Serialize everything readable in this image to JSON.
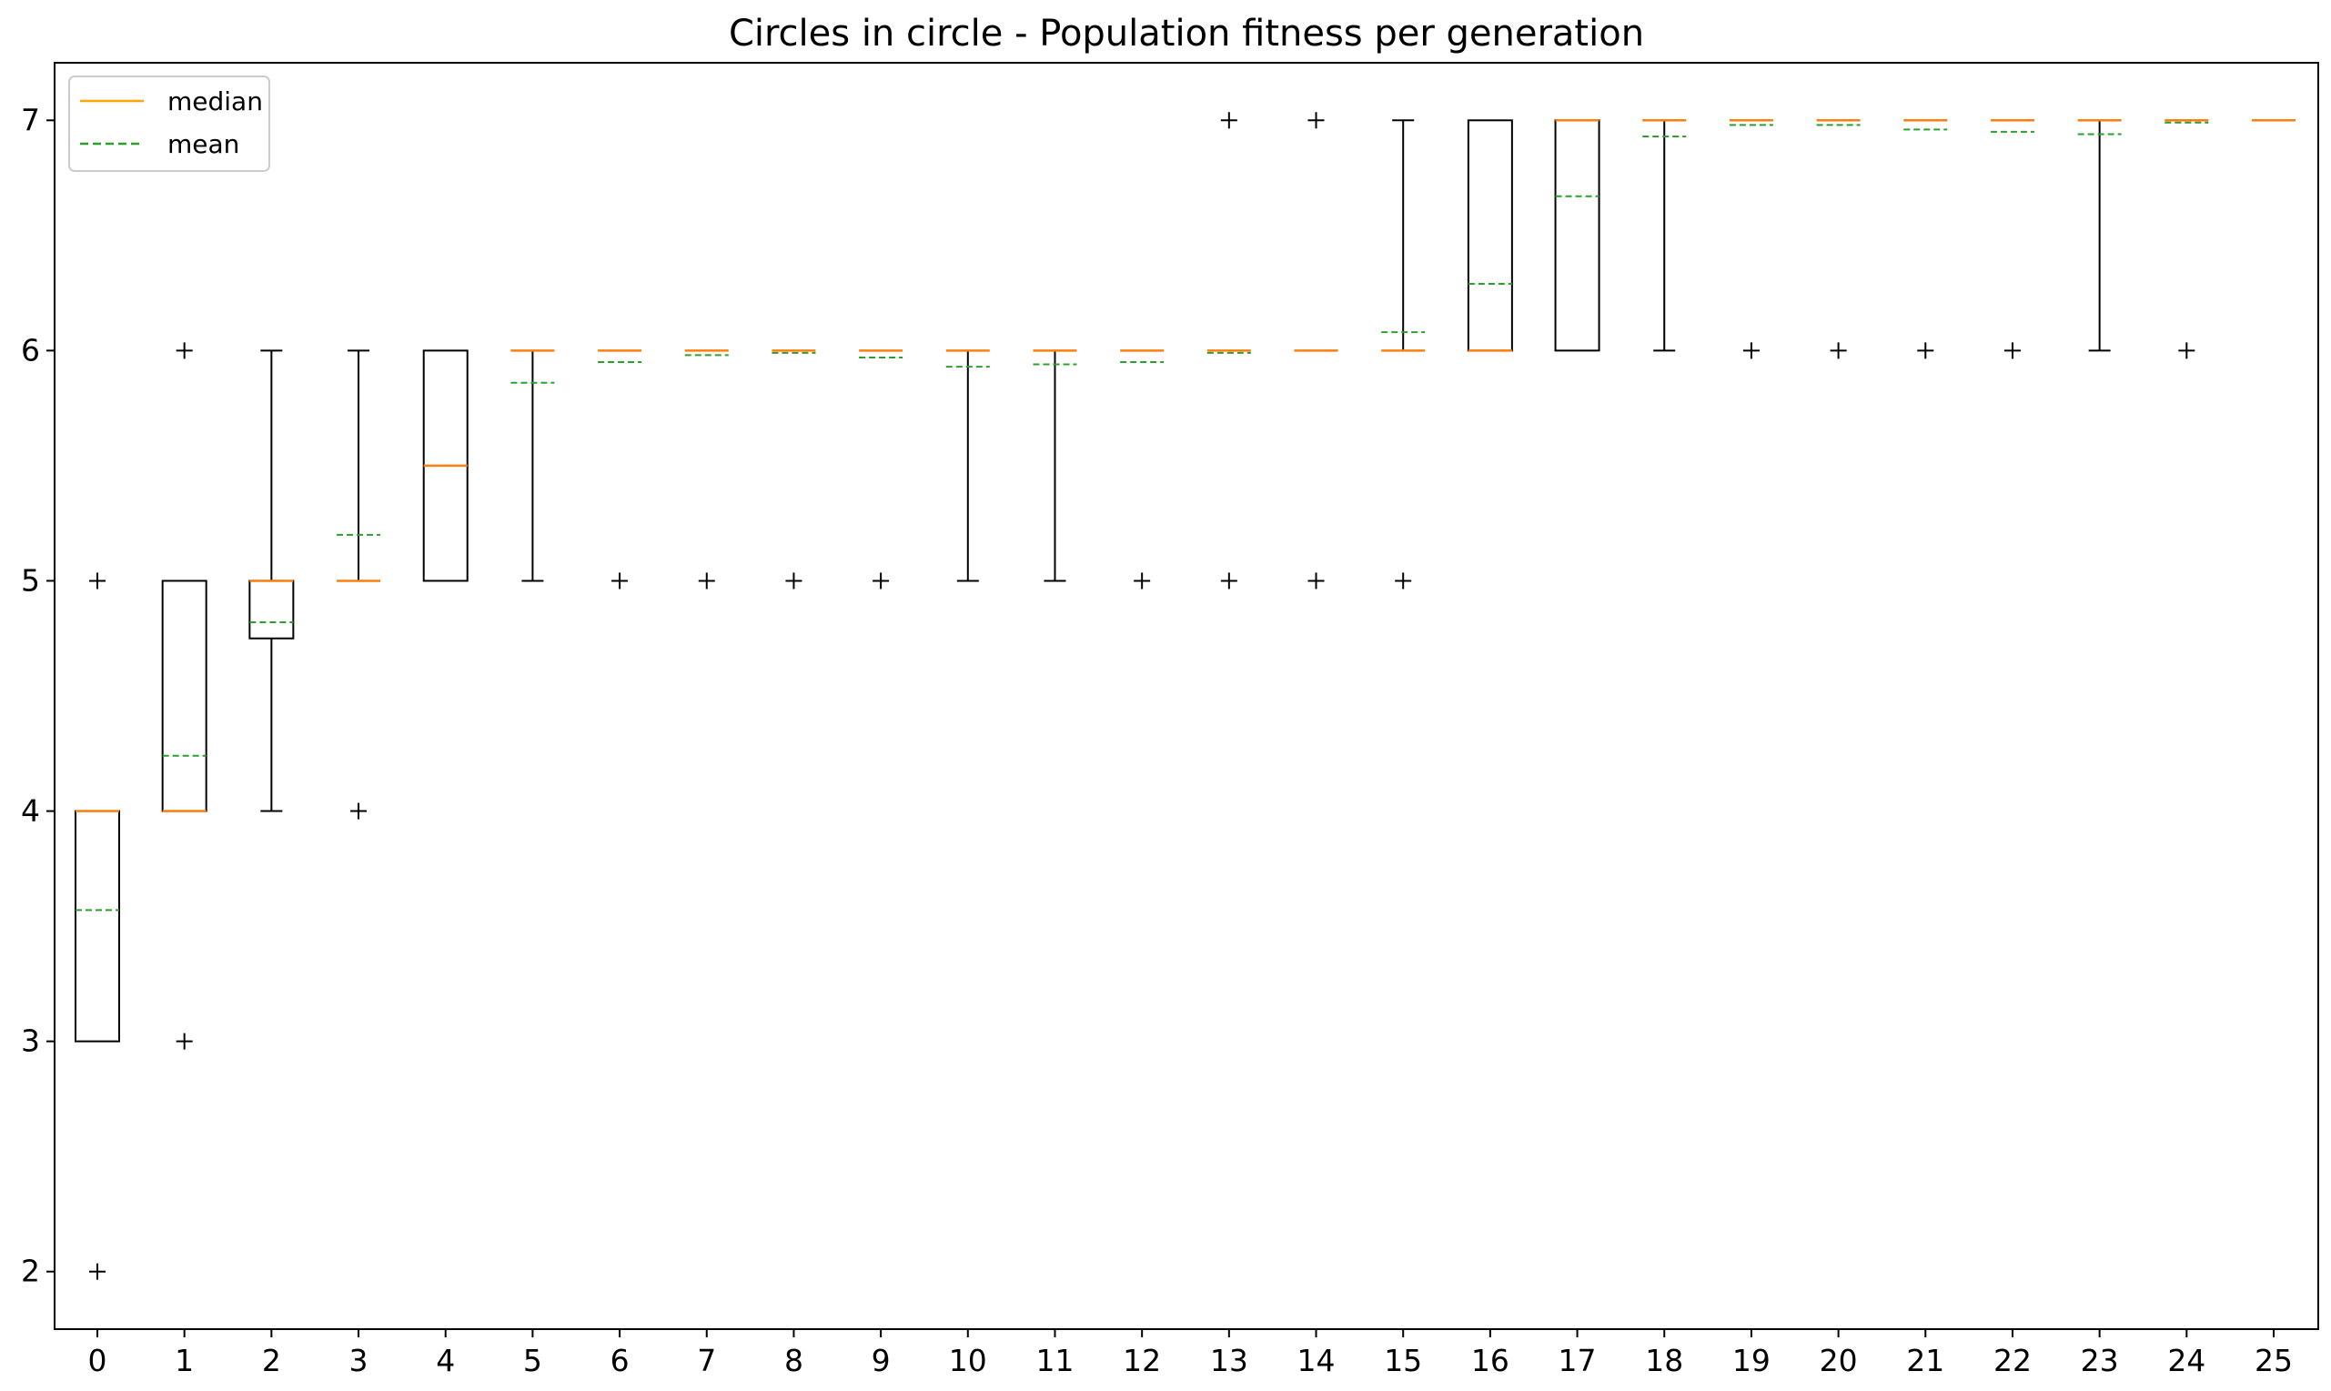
{
  "chart_data": {
    "type": "boxplot",
    "title": "Circles in circle - Population fitness per generation",
    "xlabel": "",
    "ylabel": "",
    "ylim": [
      1.75,
      7.25
    ],
    "yticks": [
      2,
      3,
      4,
      5,
      6,
      7
    ],
    "xticks": [
      0,
      1,
      2,
      3,
      4,
      5,
      6,
      7,
      8,
      9,
      10,
      11,
      12,
      13,
      14,
      15,
      16,
      17,
      18,
      19,
      20,
      21,
      22,
      23,
      24,
      25
    ],
    "legend": {
      "placement": "top-left",
      "entries": [
        {
          "key": "median",
          "label": "median",
          "color": "#ffa500",
          "style": "solid"
        },
        {
          "key": "mean",
          "label": "mean",
          "color": "#2ca02c",
          "style": "dashed"
        }
      ]
    },
    "colors": {
      "box": "#000000",
      "median": "#ff7f0e",
      "mean": "#2ca02c",
      "flier": "#000000"
    },
    "generations": [
      {
        "gen": 0,
        "q1": 3,
        "q3": 4,
        "median": 4,
        "mean": 3.57,
        "whisker_low": 3,
        "whisker_high": 4,
        "fliers": [
          2,
          5
        ]
      },
      {
        "gen": 1,
        "q1": 4,
        "q3": 5,
        "median": 4,
        "mean": 4.24,
        "whisker_low": 4,
        "whisker_high": 5,
        "fliers": [
          3,
          6
        ]
      },
      {
        "gen": 2,
        "q1": 4.75,
        "q3": 5,
        "median": 5,
        "mean": 4.82,
        "whisker_low": 4,
        "whisker_high": 6,
        "fliers": []
      },
      {
        "gen": 3,
        "q1": 5,
        "q3": 5,
        "median": 5,
        "mean": 5.2,
        "whisker_low": 5,
        "whisker_high": 6,
        "fliers": [
          4
        ]
      },
      {
        "gen": 4,
        "q1": 5,
        "q3": 6,
        "median": 5.5,
        "mean": 5.5,
        "whisker_low": 5,
        "whisker_high": 6,
        "fliers": []
      },
      {
        "gen": 5,
        "q1": 6,
        "q3": 6,
        "median": 6,
        "mean": 5.86,
        "whisker_low": 5,
        "whisker_high": 6,
        "fliers": []
      },
      {
        "gen": 6,
        "q1": 6,
        "q3": 6,
        "median": 6,
        "mean": 5.95,
        "whisker_low": 6,
        "whisker_high": 6,
        "fliers": [
          5
        ]
      },
      {
        "gen": 7,
        "q1": 6,
        "q3": 6,
        "median": 6,
        "mean": 5.98,
        "whisker_low": 6,
        "whisker_high": 6,
        "fliers": [
          5
        ]
      },
      {
        "gen": 8,
        "q1": 6,
        "q3": 6,
        "median": 6,
        "mean": 5.99,
        "whisker_low": 6,
        "whisker_high": 6,
        "fliers": [
          5
        ]
      },
      {
        "gen": 9,
        "q1": 6,
        "q3": 6,
        "median": 6,
        "mean": 5.97,
        "whisker_low": 6,
        "whisker_high": 6,
        "fliers": [
          5
        ]
      },
      {
        "gen": 10,
        "q1": 6,
        "q3": 6,
        "median": 6,
        "mean": 5.93,
        "whisker_low": 5,
        "whisker_high": 6,
        "fliers": []
      },
      {
        "gen": 11,
        "q1": 6,
        "q3": 6,
        "median": 6,
        "mean": 5.94,
        "whisker_low": 5,
        "whisker_high": 6,
        "fliers": []
      },
      {
        "gen": 12,
        "q1": 6,
        "q3": 6,
        "median": 6,
        "mean": 5.95,
        "whisker_low": 6,
        "whisker_high": 6,
        "fliers": [
          5
        ]
      },
      {
        "gen": 13,
        "q1": 6,
        "q3": 6,
        "median": 6,
        "mean": 5.99,
        "whisker_low": 6,
        "whisker_high": 6,
        "fliers": [
          5,
          7
        ]
      },
      {
        "gen": 14,
        "q1": 6,
        "q3": 6,
        "median": 6,
        "mean": 6.0,
        "whisker_low": 6,
        "whisker_high": 6,
        "fliers": [
          5,
          7
        ]
      },
      {
        "gen": 15,
        "q1": 6,
        "q3": 6,
        "median": 6,
        "mean": 6.08,
        "whisker_low": 6,
        "whisker_high": 7,
        "fliers": [
          5
        ]
      },
      {
        "gen": 16,
        "q1": 6,
        "q3": 7,
        "median": 6,
        "mean": 6.29,
        "whisker_low": 6,
        "whisker_high": 7,
        "fliers": []
      },
      {
        "gen": 17,
        "q1": 6,
        "q3": 7,
        "median": 7,
        "mean": 6.67,
        "whisker_low": 6,
        "whisker_high": 7,
        "fliers": []
      },
      {
        "gen": 18,
        "q1": 7,
        "q3": 7,
        "median": 7,
        "mean": 6.93,
        "whisker_low": 6,
        "whisker_high": 7,
        "fliers": []
      },
      {
        "gen": 19,
        "q1": 7,
        "q3": 7,
        "median": 7,
        "mean": 6.98,
        "whisker_low": 7,
        "whisker_high": 7,
        "fliers": [
          6
        ]
      },
      {
        "gen": 20,
        "q1": 7,
        "q3": 7,
        "median": 7,
        "mean": 6.98,
        "whisker_low": 7,
        "whisker_high": 7,
        "fliers": [
          6
        ]
      },
      {
        "gen": 21,
        "q1": 7,
        "q3": 7,
        "median": 7,
        "mean": 6.96,
        "whisker_low": 7,
        "whisker_high": 7,
        "fliers": [
          6
        ]
      },
      {
        "gen": 22,
        "q1": 7,
        "q3": 7,
        "median": 7,
        "mean": 6.95,
        "whisker_low": 7,
        "whisker_high": 7,
        "fliers": [
          6
        ]
      },
      {
        "gen": 23,
        "q1": 7,
        "q3": 7,
        "median": 7,
        "mean": 6.94,
        "whisker_low": 6,
        "whisker_high": 7,
        "fliers": []
      },
      {
        "gen": 24,
        "q1": 7,
        "q3": 7,
        "median": 7,
        "mean": 6.99,
        "whisker_low": 7,
        "whisker_high": 7,
        "fliers": [
          6
        ]
      },
      {
        "gen": 25,
        "q1": 7,
        "q3": 7,
        "median": 7,
        "mean": 7.0,
        "whisker_low": 7,
        "whisker_high": 7,
        "fliers": []
      }
    ]
  }
}
